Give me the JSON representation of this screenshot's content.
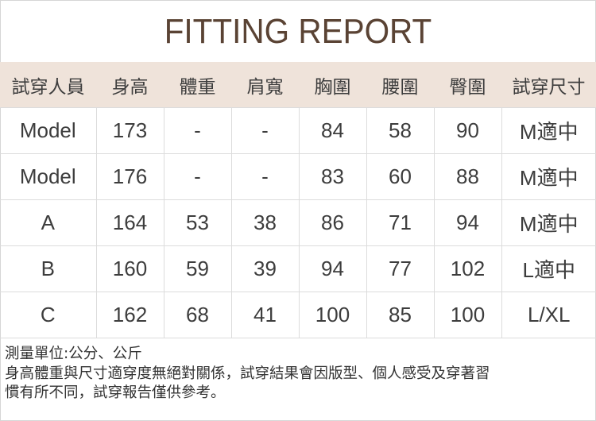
{
  "title": "FITTING REPORT",
  "table": {
    "headers": [
      "試穿人員",
      "身高",
      "體重",
      "肩寬",
      "胸圍",
      "腰圍",
      "臀圍",
      "試穿尺寸"
    ],
    "rows": [
      [
        "Model",
        "173",
        "-",
        "-",
        "84",
        "58",
        "90",
        "M適中"
      ],
      [
        "Model",
        "176",
        "-",
        "-",
        "83",
        "60",
        "88",
        "M適中"
      ],
      [
        "A",
        "164",
        "53",
        "38",
        "86",
        "71",
        "94",
        "M適中"
      ],
      [
        "B",
        "160",
        "59",
        "39",
        "94",
        "77",
        "102",
        "L適中"
      ],
      [
        "C",
        "162",
        "68",
        "41",
        "100",
        "85",
        "100",
        "L/XL"
      ]
    ]
  },
  "notes": {
    "unit": "測量單位:公分、公斤",
    "disclaimer_lines": [
      "身高體重與尺寸適穿度無絕對關係，試穿結果會因版型、個人感受及穿著習",
      "慣有所不同，試穿報告僅供參考。"
    ]
  },
  "colors": {
    "title": "#5a4334",
    "header_bg": "#efe3da",
    "border": "#dcdcdc"
  }
}
